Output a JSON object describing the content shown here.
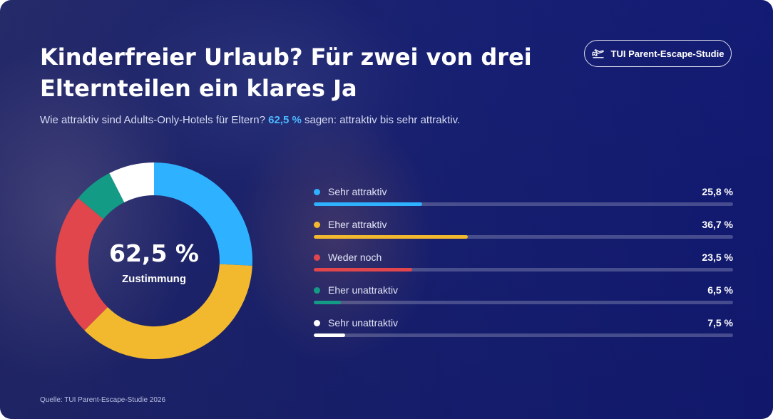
{
  "title": "Kinderfreier Urlaub? Für zwei von drei Elternteilen ein klares Ja",
  "subtitle": {
    "before": "Wie attraktiv sind Adults-Only-Hotels für Eltern?",
    "highlight": "62,5 %",
    "after": "sagen: attraktiv bis sehr attraktiv."
  },
  "badge": {
    "label": "TUI Parent-Escape-Studie",
    "icon": "plane-departure-icon"
  },
  "center": {
    "value": "62,5 %",
    "label": "Zustimmung"
  },
  "source": "Quelle: TUI Parent-Escape-Studie 2026",
  "chart_data": {
    "type": "pie",
    "variant": "donut",
    "categories": [
      "Sehr attraktiv",
      "Eher attraktiv",
      "Weder noch",
      "Eher unattraktiv",
      "Sehr unattraktiv"
    ],
    "values": [
      25.8,
      36.7,
      23.5,
      6.5,
      7.5
    ],
    "value_labels": [
      "25,8 %",
      "36,7 %",
      "23,5 %",
      "6,5 %",
      "7,5 %"
    ],
    "colors": [
      "#2eb1ff",
      "#f2b92f",
      "#e0464c",
      "#139b85",
      "#ffffff"
    ],
    "bar_max": 100
  }
}
